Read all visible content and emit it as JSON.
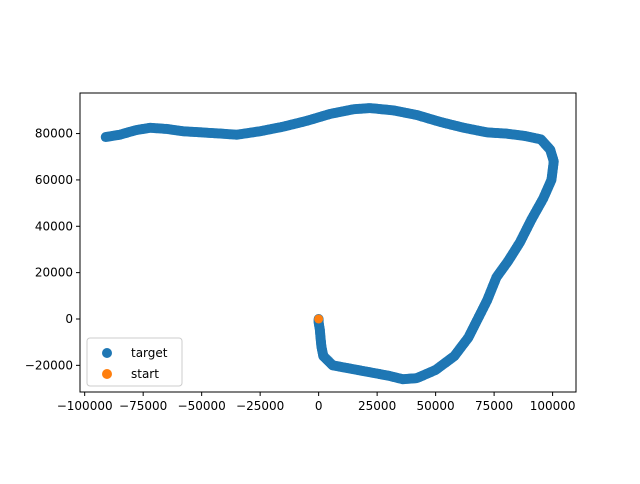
{
  "chart_data": {
    "type": "scatter",
    "xlim": [
      -102000,
      110000
    ],
    "ylim": [
      -31500,
      97500
    ],
    "xticks": [
      -100000,
      -75000,
      -50000,
      -25000,
      0,
      25000,
      50000,
      75000,
      100000
    ],
    "xtick_labels": [
      "−100000",
      "−75000",
      "−50000",
      "−25000",
      "0",
      "25000",
      "50000",
      "75000",
      "100000"
    ],
    "yticks": [
      -20000,
      0,
      20000,
      40000,
      60000,
      80000
    ],
    "ytick_labels": [
      "−20000",
      "0",
      "20000",
      "40000",
      "60000",
      "80000"
    ],
    "grid": false,
    "legend_position": "lower-left",
    "series": [
      {
        "name": "target",
        "color": "#1f77b4",
        "points": [
          [
            -91000,
            78500
          ],
          [
            -85000,
            79500
          ],
          [
            -78000,
            81500
          ],
          [
            -72000,
            82500
          ],
          [
            -65000,
            82000
          ],
          [
            -58000,
            81000
          ],
          [
            -50000,
            80500
          ],
          [
            -42000,
            80000
          ],
          [
            -35000,
            79500
          ],
          [
            -25000,
            81000
          ],
          [
            -15000,
            83000
          ],
          [
            -5000,
            85500
          ],
          [
            5000,
            88500
          ],
          [
            15000,
            90500
          ],
          [
            22000,
            91000
          ],
          [
            32000,
            90000
          ],
          [
            42000,
            88000
          ],
          [
            52000,
            85000
          ],
          [
            62000,
            82500
          ],
          [
            72000,
            80500
          ],
          [
            80000,
            80000
          ],
          [
            88000,
            79000
          ],
          [
            95000,
            77500
          ],
          [
            99000,
            73000
          ],
          [
            100500,
            68000
          ],
          [
            99500,
            60000
          ],
          [
            96000,
            52000
          ],
          [
            91000,
            43000
          ],
          [
            86000,
            33000
          ],
          [
            81000,
            25000
          ],
          [
            76000,
            18000
          ],
          [
            72000,
            8000
          ],
          [
            68000,
            0
          ],
          [
            64000,
            -8000
          ],
          [
            58000,
            -16000
          ],
          [
            50000,
            -22000
          ],
          [
            42000,
            -25500
          ],
          [
            36000,
            -26000
          ],
          [
            30000,
            -24500
          ],
          [
            22000,
            -23000
          ],
          [
            14000,
            -21500
          ],
          [
            6000,
            -20000
          ],
          [
            2000,
            -16000
          ],
          [
            1200,
            -12000
          ],
          [
            800,
            -8000
          ],
          [
            500,
            -4500
          ],
          [
            0,
            -1500
          ],
          [
            0,
            0
          ]
        ]
      },
      {
        "name": "start",
        "color": "#ff7f0e",
        "points": [
          [
            0,
            0
          ]
        ]
      }
    ]
  }
}
